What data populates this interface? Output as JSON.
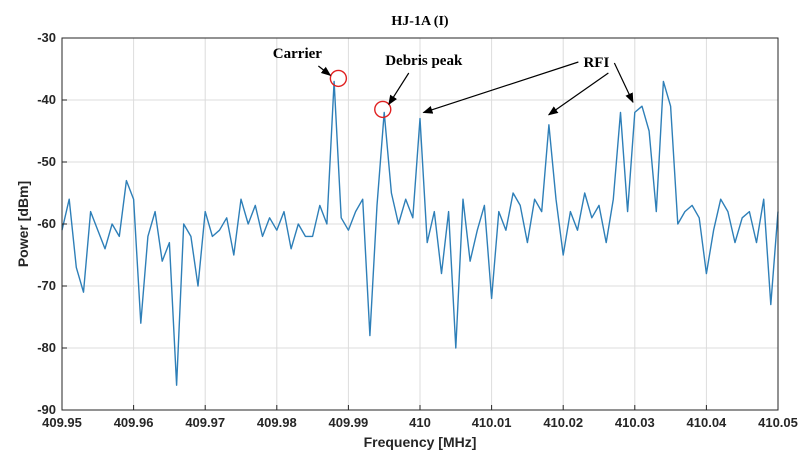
{
  "chart_data": {
    "type": "line",
    "title": "HJ-1A (I)",
    "xlabel": "Frequency [MHz]",
    "ylabel": "Power [dBm]",
    "xlim": [
      409.95,
      410.05
    ],
    "ylim": [
      -90,
      -30
    ],
    "x_ticks": [
      409.95,
      409.96,
      409.97,
      409.98,
      409.99,
      410.0,
      410.01,
      410.02,
      410.03,
      410.04,
      410.05
    ],
    "x_tick_labels": [
      "409.95",
      "409.96",
      "409.97",
      "409.98",
      "409.99",
      "410",
      "410.01",
      "410.02",
      "410.03",
      "410.04",
      "410.05"
    ],
    "y_ticks": [
      -30,
      -40,
      -50,
      -60,
      -70,
      -80,
      -90
    ],
    "y_tick_labels": [
      "-30",
      "-40",
      "-50",
      "-60",
      "-70",
      "-80",
      "-90"
    ],
    "grid": true,
    "line_color": "#2e7fb8",
    "annotation_color": "#000000",
    "marker_color": "#e02020",
    "series": [
      {
        "x": [
          409.95,
          409.951,
          409.952,
          409.953,
          409.954,
          409.955,
          409.956,
          409.957,
          409.958,
          409.959,
          409.96,
          409.961,
          409.962,
          409.963,
          409.964,
          409.965,
          409.966,
          409.967,
          409.968,
          409.969,
          409.97,
          409.971,
          409.972,
          409.973,
          409.974,
          409.975,
          409.976,
          409.977,
          409.978,
          409.979,
          409.98,
          409.981,
          409.982,
          409.983,
          409.984,
          409.985,
          409.986,
          409.987,
          409.988,
          409.989,
          409.99,
          409.991,
          409.992,
          409.993,
          409.994,
          409.995,
          409.996,
          409.997,
          409.998,
          409.999,
          410.0,
          410.001,
          410.002,
          410.003,
          410.004,
          410.005,
          410.006,
          410.007,
          410.008,
          410.009,
          410.01,
          410.011,
          410.012,
          410.013,
          410.014,
          410.015,
          410.016,
          410.017,
          410.018,
          410.019,
          410.02,
          410.021,
          410.022,
          410.023,
          410.024,
          410.025,
          410.026,
          410.027,
          410.028,
          410.029,
          410.03,
          410.031,
          410.032,
          410.033,
          410.034,
          410.035,
          410.036,
          410.037,
          410.038,
          410.039,
          410.04,
          410.041,
          410.042,
          410.043,
          410.044,
          410.045,
          410.046,
          410.047,
          410.048,
          410.049,
          410.05
        ],
        "y": [
          -61,
          -56,
          -67,
          -71,
          -58,
          -61,
          -64,
          -60,
          -62,
          -53,
          -56,
          -76,
          -62,
          -58,
          -66,
          -63,
          -86,
          -60,
          -62,
          -70,
          -58,
          -62,
          -61,
          -59,
          -65,
          -56,
          -60,
          -57,
          -62,
          -59,
          -61,
          -58,
          -64,
          -60,
          -62,
          -62,
          -57,
          -60,
          -37,
          -59,
          -61,
          -58,
          -56,
          -78,
          -57,
          -42,
          -55,
          -60,
          -56,
          -59,
          -43,
          -63,
          -58,
          -68,
          -58,
          -80,
          -56,
          -66,
          -61,
          -57,
          -72,
          -58,
          -61,
          -55,
          -57,
          -63,
          -56,
          -58,
          -44,
          -56,
          -65,
          -58,
          -61,
          -55,
          -59,
          -57,
          -63,
          -56,
          -42,
          -58,
          -42,
          -41,
          -45,
          -58,
          -37,
          -41,
          -60,
          -58,
          -57,
          -59,
          -68,
          -61,
          -56,
          -58,
          -63,
          -59,
          -58,
          -63,
          -56,
          -73,
          -58
        ]
      }
    ],
    "annotations": [
      {
        "text": "Carrier",
        "x": 409.9886,
        "y": -37
      },
      {
        "text": "Debris peak",
        "x": 409.9948,
        "y": -42
      },
      {
        "text": "RFI",
        "x": 410.0002,
        "y": -43
      },
      {
        "text": "RFI",
        "x": 410.0177,
        "y": -44
      },
      {
        "text": "RFI",
        "x": 410.0296,
        "y": -41
      }
    ]
  }
}
